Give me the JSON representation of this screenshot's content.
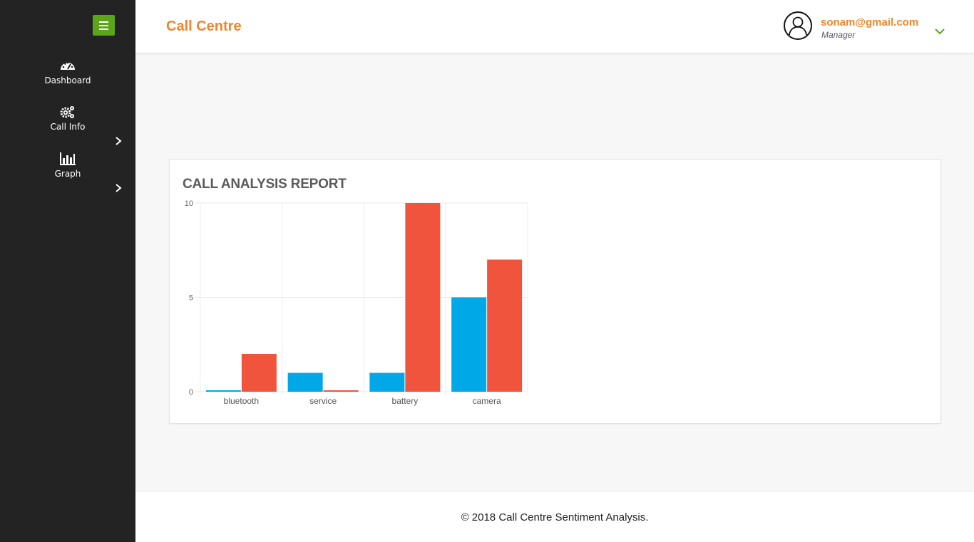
{
  "sidebar": {
    "menu_icon": "hamburger-icon",
    "items": [
      {
        "label": "Dashboard",
        "icon": "dashboard-gauge-icon",
        "has_submenu": false
      },
      {
        "label": "Call Info",
        "icon": "gears-icon",
        "has_submenu": true
      },
      {
        "label": "Graph",
        "icon": "bar-chart-icon",
        "has_submenu": true
      }
    ]
  },
  "header": {
    "title": "Call Centre",
    "user": {
      "email": "sonam@gmail.com",
      "role": "Manager",
      "avatar_icon": "user-avatar-icon"
    }
  },
  "card": {
    "title": "CALL ANALYSIS REPORT"
  },
  "chart_data": {
    "type": "bar",
    "categories": [
      "bluetooth",
      "service",
      "battery",
      "camera"
    ],
    "series": [
      {
        "color": "#00a8e8",
        "values": [
          0,
          1,
          1,
          5
        ]
      },
      {
        "color": "#f0543c",
        "values": [
          2,
          0,
          10,
          7
        ]
      }
    ],
    "ylim": [
      0,
      10
    ],
    "yticks": [
      "0",
      "5",
      "10"
    ],
    "grid": true
  },
  "footer": {
    "text": "© 2018 Call Centre Sentiment Analysis."
  },
  "colors": {
    "accent": "#f0852d",
    "sidebar_bg": "#222322",
    "menu_button": "#5aa51a"
  }
}
